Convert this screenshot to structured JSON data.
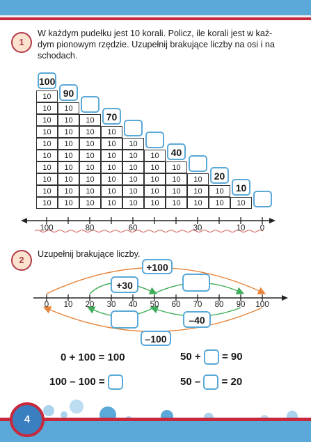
{
  "exercise1": {
    "number": "1",
    "instruction_line1": "W każdym pudełku jest 10 korali. Policz, ile korali jest w każ-",
    "instruction_line2": "dym pionowym rzędzie. Uzupełnij brakujące liczby na osi i na",
    "instruction_line3": "schodach.",
    "cell_value": "10",
    "stairs": [
      "100",
      "90",
      "",
      "70",
      "",
      "",
      "40",
      "",
      "20",
      "10",
      ""
    ],
    "axis_labels": [
      {
        "text": "100",
        "col": 0
      },
      {
        "text": "80",
        "col": 2
      },
      {
        "text": "60",
        "col": 4
      },
      {
        "text": "30",
        "col": 7
      },
      {
        "text": "10",
        "col": 9
      },
      {
        "text": "0",
        "col": 10
      }
    ]
  },
  "exercise2": {
    "number": "2",
    "instruction": "Uzupełnij brakujące liczby.",
    "axis_ticks": [
      "0",
      "10",
      "20",
      "30",
      "40",
      "50",
      "60",
      "70",
      "80",
      "90",
      "100"
    ],
    "box_plus100": "+100",
    "box_plus30": "+30",
    "box_blank_top": "",
    "box_blank_bottom": "",
    "box_minus40": "–40",
    "box_minus100": "–100",
    "eq1": "0 + 100 = 100",
    "eq2_left": "50 +",
    "eq2_right": "= 90",
    "eq3_left": "100 – 100 =",
    "eq4_left": "50 –",
    "eq4_right": "= 20"
  },
  "footer": {
    "page_number": "4"
  },
  "colors": {
    "accent_blue": "#5aa9d8",
    "accent_red": "#c8283c",
    "arrow_orange": "#e8843a",
    "arrow_green": "#3fae5a"
  }
}
